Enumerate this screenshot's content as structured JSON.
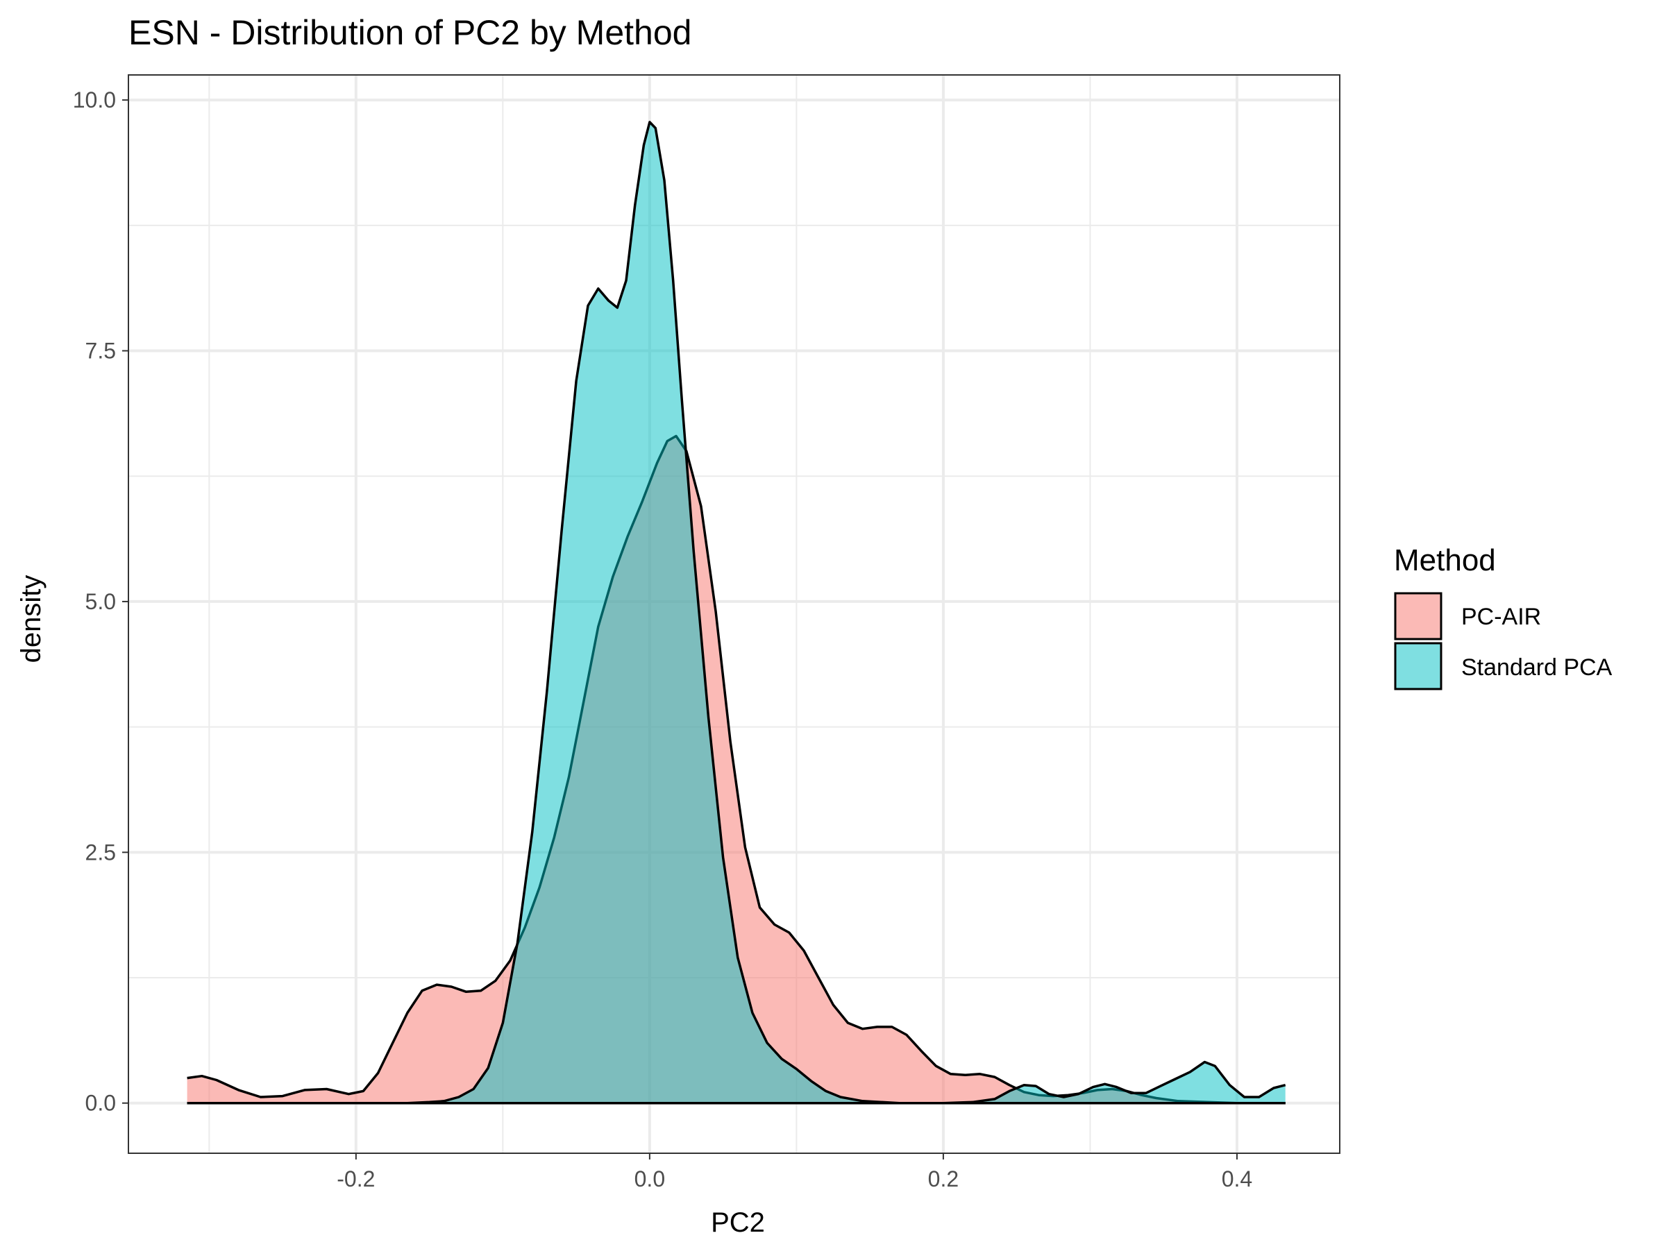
{
  "chart_data": {
    "type": "area",
    "subtype": "density",
    "title": "ESN - Distribution of PC2 by Method",
    "xlabel": "PC2",
    "ylabel": "density",
    "xlim": [
      -0.355,
      0.47
    ],
    "ylim": [
      -0.5,
      10.25
    ],
    "x_ticks": [
      -0.2,
      0.0,
      0.2,
      0.4
    ],
    "x_tick_labels": [
      "-0.2",
      "0.0",
      "0.2",
      "0.4"
    ],
    "x_minor_ticks": [
      -0.3,
      -0.1,
      0.1,
      0.3
    ],
    "y_ticks": [
      0.0,
      2.5,
      5.0,
      7.5,
      10.0
    ],
    "y_tick_labels": [
      "0.0",
      "2.5",
      "5.0",
      "7.5",
      "10.0"
    ],
    "y_minor_ticks": [
      1.25,
      3.75,
      6.25,
      8.75
    ],
    "grid": true,
    "fill_alpha": 0.5,
    "legend": {
      "title": "Method",
      "position": "right",
      "entries": [
        {
          "label": "PC-AIR",
          "color": "#F8766D"
        },
        {
          "label": "Standard PCA",
          "color": "#00BFC4"
        }
      ]
    },
    "series": [
      {
        "name": "PC-AIR",
        "color": "#F8766D",
        "points": [
          [
            -0.315,
            0.25
          ],
          [
            -0.305,
            0.27
          ],
          [
            -0.295,
            0.23
          ],
          [
            -0.28,
            0.13
          ],
          [
            -0.265,
            0.06
          ],
          [
            -0.25,
            0.07
          ],
          [
            -0.235,
            0.13
          ],
          [
            -0.22,
            0.14
          ],
          [
            -0.205,
            0.09
          ],
          [
            -0.195,
            0.12
          ],
          [
            -0.185,
            0.3
          ],
          [
            -0.175,
            0.6
          ],
          [
            -0.165,
            0.9
          ],
          [
            -0.155,
            1.12
          ],
          [
            -0.145,
            1.18
          ],
          [
            -0.135,
            1.16
          ],
          [
            -0.125,
            1.11
          ],
          [
            -0.115,
            1.12
          ],
          [
            -0.105,
            1.22
          ],
          [
            -0.095,
            1.42
          ],
          [
            -0.085,
            1.75
          ],
          [
            -0.075,
            2.15
          ],
          [
            -0.065,
            2.65
          ],
          [
            -0.055,
            3.25
          ],
          [
            -0.045,
            4.0
          ],
          [
            -0.035,
            4.75
          ],
          [
            -0.025,
            5.25
          ],
          [
            -0.015,
            5.65
          ],
          [
            -0.005,
            6.0
          ],
          [
            0.005,
            6.38
          ],
          [
            0.012,
            6.6
          ],
          [
            0.018,
            6.65
          ],
          [
            0.025,
            6.5
          ],
          [
            0.035,
            5.95
          ],
          [
            0.045,
            4.9
          ],
          [
            0.055,
            3.6
          ],
          [
            0.065,
            2.55
          ],
          [
            0.075,
            1.95
          ],
          [
            0.085,
            1.78
          ],
          [
            0.095,
            1.7
          ],
          [
            0.105,
            1.52
          ],
          [
            0.115,
            1.25
          ],
          [
            0.125,
            0.98
          ],
          [
            0.135,
            0.8
          ],
          [
            0.145,
            0.74
          ],
          [
            0.155,
            0.76
          ],
          [
            0.165,
            0.76
          ],
          [
            0.175,
            0.68
          ],
          [
            0.185,
            0.52
          ],
          [
            0.195,
            0.37
          ],
          [
            0.205,
            0.29
          ],
          [
            0.215,
            0.28
          ],
          [
            0.225,
            0.29
          ],
          [
            0.235,
            0.26
          ],
          [
            0.245,
            0.18
          ],
          [
            0.255,
            0.11
          ],
          [
            0.265,
            0.08
          ],
          [
            0.275,
            0.07
          ],
          [
            0.285,
            0.08
          ],
          [
            0.295,
            0.1
          ],
          [
            0.305,
            0.13
          ],
          [
            0.315,
            0.14
          ],
          [
            0.325,
            0.12
          ],
          [
            0.335,
            0.08
          ],
          [
            0.345,
            0.05
          ],
          [
            0.36,
            0.02
          ],
          [
            0.38,
            0.01
          ],
          [
            0.4,
            0.0
          ],
          [
            0.42,
            0.0
          ],
          [
            0.433,
            0.0
          ]
        ]
      },
      {
        "name": "Standard PCA",
        "color": "#00BFC4",
        "points": [
          [
            -0.315,
            0.0
          ],
          [
            -0.25,
            0.0
          ],
          [
            -0.2,
            0.0
          ],
          [
            -0.165,
            0.0
          ],
          [
            -0.15,
            0.01
          ],
          [
            -0.14,
            0.02
          ],
          [
            -0.13,
            0.06
          ],
          [
            -0.12,
            0.14
          ],
          [
            -0.11,
            0.35
          ],
          [
            -0.1,
            0.8
          ],
          [
            -0.09,
            1.6
          ],
          [
            -0.08,
            2.7
          ],
          [
            -0.07,
            4.1
          ],
          [
            -0.06,
            5.7
          ],
          [
            -0.05,
            7.2
          ],
          [
            -0.042,
            7.95
          ],
          [
            -0.035,
            8.12
          ],
          [
            -0.028,
            8.0
          ],
          [
            -0.022,
            7.93
          ],
          [
            -0.016,
            8.2
          ],
          [
            -0.01,
            8.95
          ],
          [
            -0.004,
            9.55
          ],
          [
            0.0,
            9.78
          ],
          [
            0.004,
            9.72
          ],
          [
            0.01,
            9.2
          ],
          [
            0.016,
            8.2
          ],
          [
            0.022,
            7.0
          ],
          [
            0.03,
            5.5
          ],
          [
            0.04,
            3.85
          ],
          [
            0.05,
            2.45
          ],
          [
            0.06,
            1.45
          ],
          [
            0.07,
            0.9
          ],
          [
            0.08,
            0.6
          ],
          [
            0.09,
            0.44
          ],
          [
            0.1,
            0.34
          ],
          [
            0.11,
            0.22
          ],
          [
            0.12,
            0.12
          ],
          [
            0.13,
            0.06
          ],
          [
            0.145,
            0.02
          ],
          [
            0.17,
            0.0
          ],
          [
            0.2,
            0.0
          ],
          [
            0.22,
            0.01
          ],
          [
            0.235,
            0.04
          ],
          [
            0.245,
            0.12
          ],
          [
            0.255,
            0.18
          ],
          [
            0.263,
            0.17
          ],
          [
            0.272,
            0.09
          ],
          [
            0.282,
            0.06
          ],
          [
            0.292,
            0.09
          ],
          [
            0.302,
            0.16
          ],
          [
            0.31,
            0.19
          ],
          [
            0.318,
            0.16
          ],
          [
            0.328,
            0.1
          ],
          [
            0.338,
            0.1
          ],
          [
            0.348,
            0.17
          ],
          [
            0.358,
            0.24
          ],
          [
            0.368,
            0.31
          ],
          [
            0.378,
            0.41
          ],
          [
            0.385,
            0.37
          ],
          [
            0.395,
            0.18
          ],
          [
            0.405,
            0.06
          ],
          [
            0.415,
            0.06
          ],
          [
            0.425,
            0.15
          ],
          [
            0.433,
            0.18
          ]
        ]
      }
    ]
  }
}
